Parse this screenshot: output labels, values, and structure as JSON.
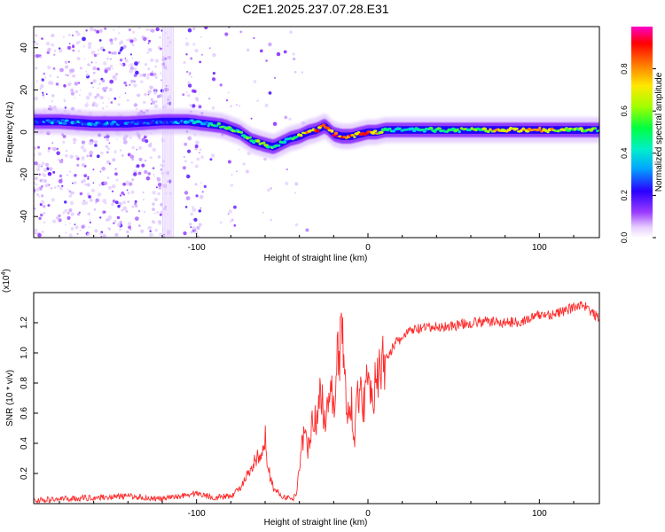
{
  "title": "C2E1.2025.237.07.28.E31",
  "chart_data": [
    {
      "type": "heatmap",
      "name": "spectrogram",
      "xlabel": "Height of straight line (km)",
      "ylabel": "Frequency (Hz)",
      "xlim": [
        -195,
        135
      ],
      "ylim": [
        -50,
        50
      ],
      "x_ticks": [
        -100,
        0,
        100
      ],
      "x_tick_labels": [
        "-100",
        "0",
        "100"
      ],
      "y_ticks": [
        40,
        20,
        0,
        -20,
        -40
      ],
      "y_tick_labels": [
        "40",
        "20",
        "0",
        "-20",
        "-40"
      ],
      "ridge": {
        "x": [
          -195,
          -180,
          -160,
          -140,
          -120,
          -105,
          -95,
          -85,
          -75,
          -68,
          -60,
          -55,
          -50,
          -45,
          -40,
          -35,
          -30,
          -25,
          -20,
          -15,
          -10,
          -5,
          0,
          5,
          10,
          20,
          40,
          60,
          80,
          100,
          120,
          135
        ],
        "freq": [
          5,
          5,
          4,
          4,
          5,
          5,
          4,
          3,
          0,
          -4,
          -6,
          -7,
          -5,
          -3,
          -2,
          0,
          1,
          3,
          -1,
          -2,
          -2,
          -1,
          0,
          0,
          1,
          1,
          1,
          1,
          1,
          1,
          1,
          1
        ],
        "amplitude": [
          0.35,
          0.4,
          0.4,
          0.35,
          0.35,
          0.4,
          0.45,
          0.5,
          0.55,
          0.6,
          0.55,
          0.5,
          0.5,
          0.55,
          0.6,
          0.75,
          0.85,
          0.9,
          0.9,
          0.85,
          0.85,
          0.8,
          0.9,
          0.75,
          0.5,
          0.45,
          0.5,
          0.55,
          0.75,
          0.8,
          0.6,
          0.55
        ]
      }
    },
    {
      "type": "colorbar",
      "name": "normalized-amplitude-colorbar",
      "label": "Normalized spectral amplitude",
      "range": [
        0,
        1
      ],
      "ticks": [
        0.0,
        0.2,
        0.4,
        0.6,
        0.8
      ],
      "tick_labels": [
        "0.0",
        "0.2",
        "0.4",
        "0.6",
        "0.8"
      ],
      "colors": [
        "#ffffff",
        "#d6b6ff",
        "#8b2bff",
        "#2000ff",
        "#00c8ff",
        "#00ff66",
        "#b8ff00",
        "#ffe800",
        "#ff6a00",
        "#ff0000",
        "#ff00c8"
      ]
    },
    {
      "type": "line",
      "name": "snr",
      "xlabel": "Height of straight line (km)",
      "ylabel": "SNR (10 * v/v)",
      "yscale_label": "(x10",
      "yscale_exp": "4",
      "xlim": [
        -195,
        135
      ],
      "ylim": [
        0,
        1.4
      ],
      "x_ticks": [
        -100,
        0,
        100
      ],
      "x_tick_labels": [
        "-100",
        "0",
        "100"
      ],
      "y_ticks": [
        0.2,
        0.4,
        0.6,
        0.8,
        1.0,
        1.2
      ],
      "y_tick_labels": [
        "0.2",
        "0.4",
        "0.6",
        "0.8",
        "1.0",
        "1.2"
      ],
      "color": "#ff2a2a",
      "series": {
        "x": [
          -195,
          -180,
          -160,
          -140,
          -120,
          -110,
          -100,
          -90,
          -80,
          -75,
          -72,
          -68,
          -65,
          -62,
          -60,
          -58,
          -55,
          -50,
          -45,
          -42,
          -40,
          -38,
          -35,
          -32,
          -30,
          -28,
          -25,
          -22,
          -20,
          -18,
          -15,
          -12,
          -10,
          -8,
          -5,
          -2,
          0,
          3,
          6,
          10,
          15,
          20,
          25,
          30,
          40,
          50,
          60,
          70,
          80,
          90,
          100,
          110,
          120,
          125,
          130,
          135
        ],
        "snr": [
          0.02,
          0.03,
          0.04,
          0.05,
          0.03,
          0.05,
          0.07,
          0.04,
          0.05,
          0.1,
          0.15,
          0.22,
          0.3,
          0.28,
          0.45,
          0.22,
          0.1,
          0.05,
          0.03,
          0.05,
          0.25,
          0.45,
          0.38,
          0.62,
          0.48,
          0.78,
          0.55,
          0.85,
          0.62,
          0.95,
          1.12,
          0.55,
          0.72,
          0.45,
          0.78,
          0.65,
          0.92,
          0.72,
          0.85,
          0.95,
          1.05,
          1.1,
          1.15,
          1.16,
          1.17,
          1.18,
          1.2,
          1.21,
          1.2,
          1.21,
          1.25,
          1.26,
          1.3,
          1.33,
          1.27,
          1.23
        ]
      }
    }
  ]
}
